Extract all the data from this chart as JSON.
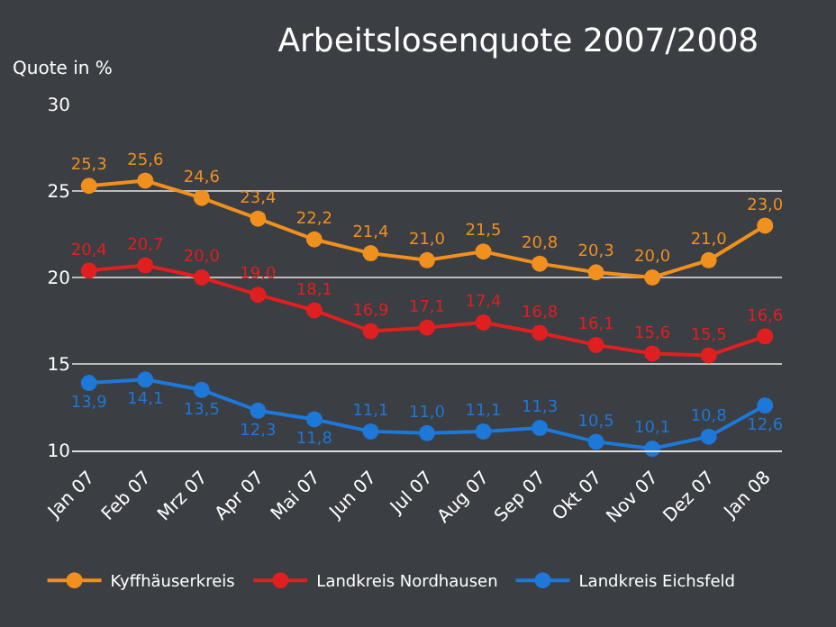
{
  "chart_data": {
    "type": "line",
    "title": "Arbeitslosenquote 2007/2008",
    "ylabel": "Quote in %",
    "categories": [
      "Jan 07",
      "Feb 07",
      "Mrz 07",
      "Apr 07",
      "Mai 07",
      "Jun 07",
      "Jul 07",
      "Aug 07",
      "Sep 07",
      "Okt 07",
      "Nov 07",
      "Dez 07",
      "Jan 08"
    ],
    "series": [
      {
        "name": "Kyffhäuserkreis",
        "color": "#f0901e",
        "values": [
          25.3,
          25.6,
          24.6,
          23.4,
          22.2,
          21.4,
          21.0,
          21.5,
          20.8,
          20.3,
          20.0,
          21.0,
          23.0
        ],
        "value_labels": [
          "25,3",
          "25,6",
          "24,6",
          "23,4",
          "22,2",
          "21,4",
          "21,0",
          "21,5",
          "20,8",
          "20,3",
          "20,0",
          "21,0",
          "23,0"
        ]
      },
      {
        "name": "Landkreis Nordhausen",
        "color": "#e02020",
        "values": [
          20.4,
          20.7,
          20.0,
          19.0,
          18.1,
          16.9,
          17.1,
          17.4,
          16.8,
          16.1,
          15.6,
          15.5,
          16.6
        ],
        "value_labels": [
          "20,4",
          "20,7",
          "20,0",
          "19,0",
          "18,1",
          "16,9",
          "17,1",
          "17,4",
          "16,8",
          "16,1",
          "15,6",
          "15,5",
          "16,6"
        ]
      },
      {
        "name": "Landkreis Eichsfeld",
        "color": "#1e78d8",
        "values": [
          13.9,
          14.1,
          13.5,
          12.3,
          11.8,
          11.1,
          11.0,
          11.1,
          11.3,
          10.5,
          10.1,
          10.8,
          12.6
        ],
        "value_labels": [
          "13,9",
          "14,1",
          "13,5",
          "12,3",
          "11,8",
          "11,1",
          "11,0",
          "11,1",
          "11,3",
          "10,5",
          "10,1",
          "10,8",
          "12,6"
        ]
      }
    ],
    "ylim": [
      10,
      30
    ],
    "yticks": [
      10,
      15,
      20,
      25,
      30
    ],
    "grid": "y",
    "legend": "bottom",
    "marker": "circle",
    "line_style": "solid"
  }
}
